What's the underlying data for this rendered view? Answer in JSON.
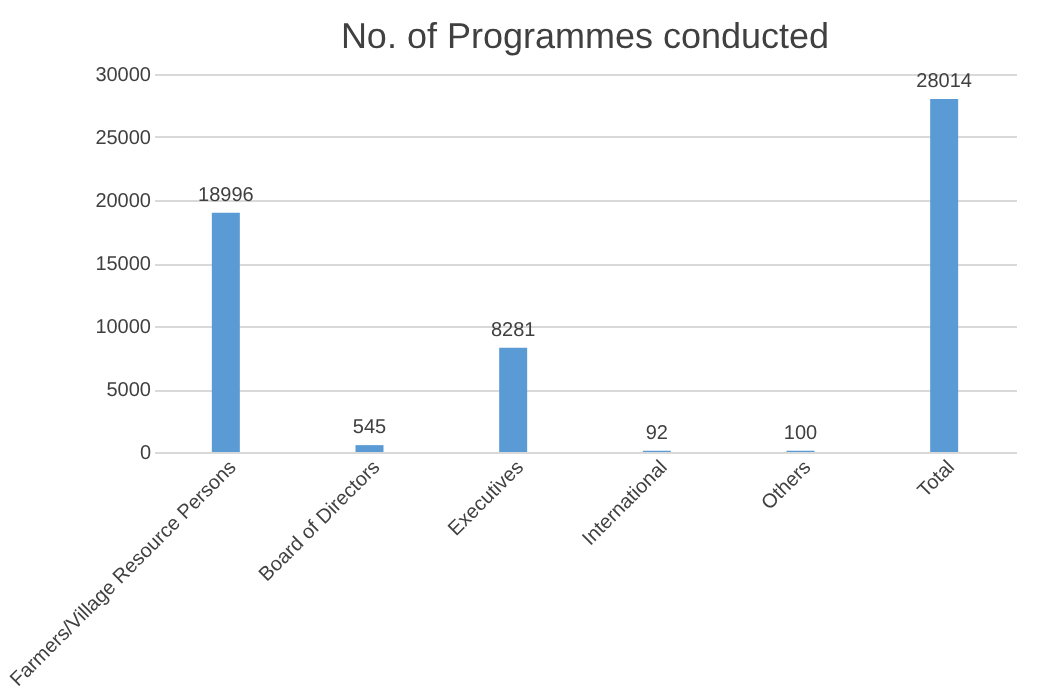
{
  "chart_data": {
    "type": "bar",
    "title": "No. of Programmes conducted",
    "categories": [
      "Farmers/Village Resource Persons",
      "Board of Directors",
      "Executives",
      "International",
      "Others",
      "Total"
    ],
    "values": [
      18996,
      545,
      8281,
      92,
      100,
      28014
    ],
    "color": "#5b9bd5",
    "data_labels": true,
    "grid": "y",
    "ylim": [
      0,
      30000
    ],
    "yticks": [
      0,
      5000,
      10000,
      15000,
      20000,
      25000,
      30000
    ]
  }
}
